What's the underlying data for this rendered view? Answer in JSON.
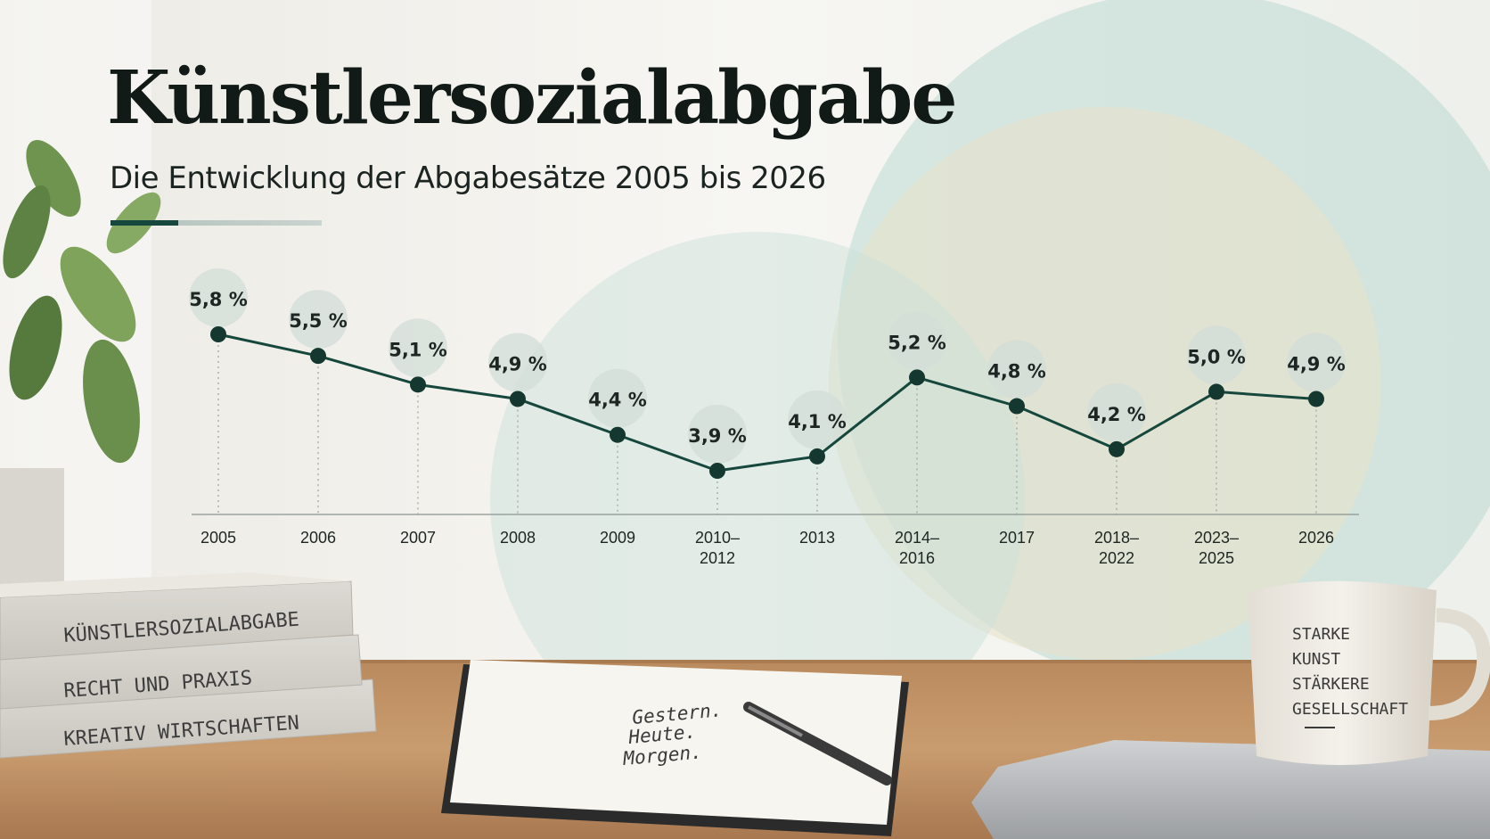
{
  "title": "Künstlersozialabgabe",
  "subtitle": "Die Entwicklung der Abgabesätze 2005 bis 2026",
  "colors": {
    "line": "#16473d",
    "point": "#14382f",
    "label_badge": "#d3ddd8",
    "accent_circle_teal": "#bcd8d2",
    "accent_circle_beige": "#e9e1c8"
  },
  "chart_data": {
    "type": "line",
    "title": "Künstlersozialabgabe",
    "subtitle": "Die Entwicklung der Abgabesätze 2005 bis 2026",
    "xlabel": "",
    "ylabel": "",
    "categories": [
      [
        "2005"
      ],
      [
        "2006"
      ],
      [
        "2007"
      ],
      [
        "2008"
      ],
      [
        "2009"
      ],
      [
        "2010–",
        "2012"
      ],
      [
        "2013"
      ],
      [
        "2014–",
        "2016"
      ],
      [
        "2017"
      ],
      [
        "2018–",
        "2022"
      ],
      [
        "2023–",
        "2025"
      ],
      [
        "2026"
      ]
    ],
    "values": [
      5.8,
      5.5,
      5.1,
      4.9,
      4.4,
      3.9,
      4.1,
      5.2,
      4.8,
      4.2,
      5.0,
      4.9
    ],
    "data_labels": [
      "5,8 %",
      "5,5 %",
      "5,1 %",
      "4,9 %",
      "4,4 %",
      "3,9 %",
      "4,1 %",
      "5,2 %",
      "4,8 %",
      "4,2 %",
      "5,0 %",
      "4,9 %"
    ],
    "grid": false,
    "legend": "none"
  },
  "scene": {
    "books": [
      "KÜNSTLERSOZIALABGABE",
      "RECHT UND PRAXIS",
      "KREATIV WIRTSCHAFTEN"
    ],
    "notebook": [
      "Gestern.",
      "Heute.",
      "Morgen."
    ],
    "mug": [
      "STARKE",
      "KUNST",
      "STÄRKERE",
      "GESELLSCHAFT"
    ]
  }
}
